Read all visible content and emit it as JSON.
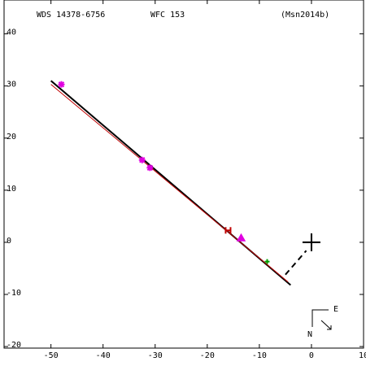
{
  "chart_data": {
    "type": "orbit",
    "header": [
      "WDS 14378-6756",
      "WFC 153",
      "(Msn2014b)"
    ],
    "xlim": [
      -59,
      10
    ],
    "ylim": [
      -20.3,
      46.5
    ],
    "xticks": [
      -50,
      -40,
      -30,
      -20,
      -10,
      0,
      10
    ],
    "yticks": [
      40,
      30,
      20,
      10,
      0,
      -10,
      -20
    ],
    "lines": [
      {
        "color": "#000000",
        "width": 2,
        "dash": false,
        "x": [
          -50,
          -4
        ],
        "y": [
          31,
          -8.2
        ]
      },
      {
        "color": "#c00000",
        "width": 1,
        "dash": false,
        "x": [
          -50,
          -4.5
        ],
        "y": [
          30.3,
          -7.6
        ]
      },
      {
        "color": "#000000",
        "width": 2,
        "dash": true,
        "x": [
          -5,
          -1
        ],
        "y": [
          -6.2,
          -1.6
        ]
      }
    ],
    "points": [
      {
        "marker": "star",
        "color": "#e000e0",
        "x": [
          -48,
          -32.5,
          -31
        ],
        "y": [
          30.3,
          15.8,
          14.3
        ]
      },
      {
        "marker": "triangle",
        "color": "#e000e0",
        "x": [
          -13.5
        ],
        "y": [
          0.8
        ]
      },
      {
        "marker": "h",
        "color": "#c00000",
        "x": [
          -16
        ],
        "y": [
          2.3
        ]
      },
      {
        "marker": "plus",
        "color": "#00a000",
        "x": [
          -8.5
        ],
        "y": [
          -3.7
        ]
      }
    ],
    "primary": {
      "x": 0,
      "y": 0
    },
    "compass": {
      "east": "E",
      "north": "N"
    }
  }
}
